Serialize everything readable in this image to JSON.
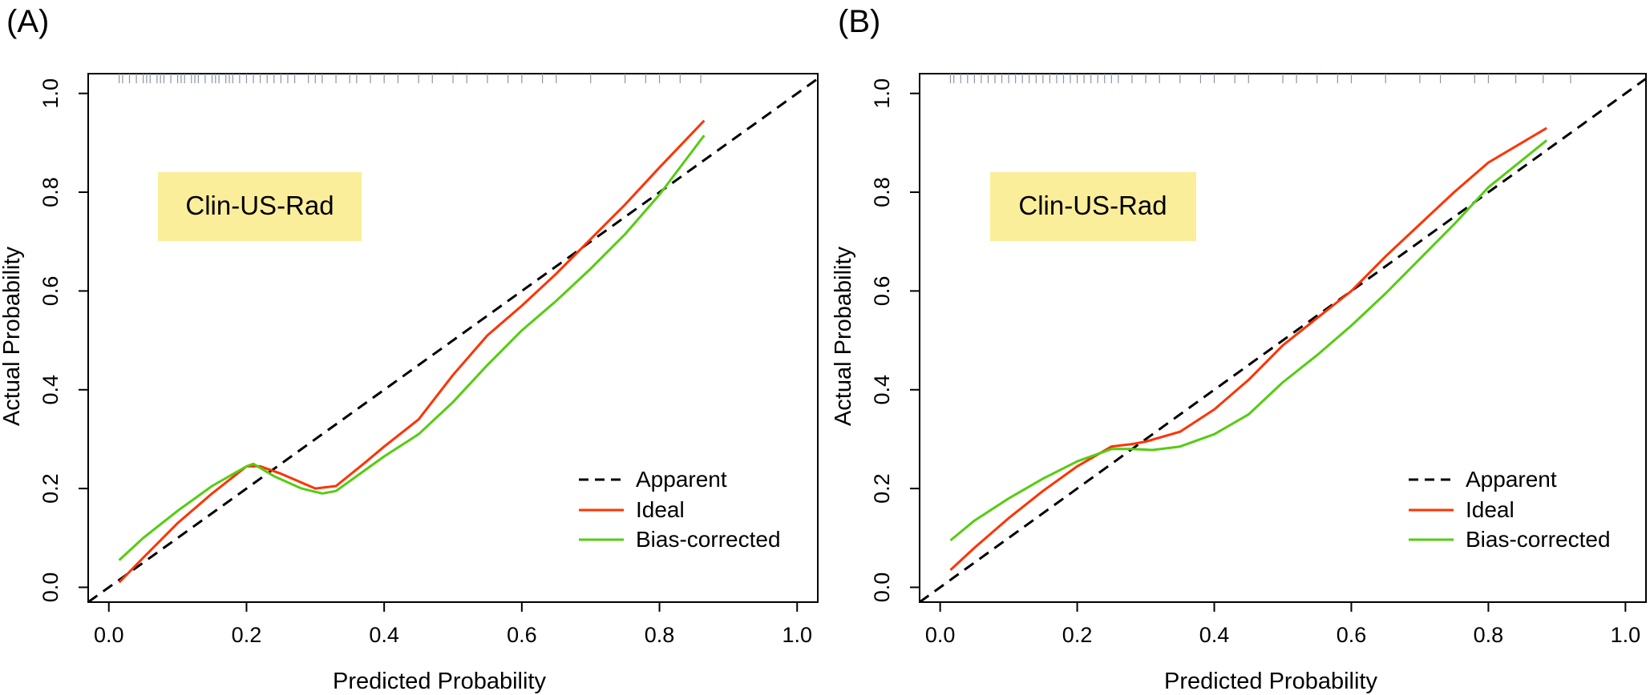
{
  "chart_data": [
    {
      "type": "line",
      "panel_label": "(A)",
      "model_label": "Clin-US-Rad",
      "model_label_bg": "#fbee9b",
      "xlabel": "Predicted Probability",
      "ylabel": "Actual Probability",
      "xlim": [
        -0.03,
        1.03
      ],
      "ylim": [
        -0.03,
        1.04
      ],
      "xticks": [
        "0.0",
        "0.2",
        "0.4",
        "0.6",
        "0.8",
        "1.0"
      ],
      "yticks": [
        "0.0",
        "0.2",
        "0.4",
        "0.6",
        "0.8",
        "1.0"
      ],
      "legend_position": "bottom-right",
      "series": [
        {
          "name": "Apparent",
          "color": "#000000",
          "dash": true,
          "x": [
            -0.03,
            1.03
          ],
          "y": [
            -0.03,
            1.03
          ]
        },
        {
          "name": "Ideal",
          "color": "#ff3300",
          "x": [
            0.015,
            0.05,
            0.1,
            0.15,
            0.2,
            0.22,
            0.25,
            0.3,
            0.33,
            0.37,
            0.4,
            0.45,
            0.5,
            0.55,
            0.6,
            0.65,
            0.7,
            0.75,
            0.8,
            0.865
          ],
          "y": [
            0.01,
            0.06,
            0.13,
            0.19,
            0.245,
            0.245,
            0.23,
            0.2,
            0.205,
            0.25,
            0.285,
            0.34,
            0.43,
            0.51,
            0.57,
            0.635,
            0.705,
            0.775,
            0.85,
            0.945
          ]
        },
        {
          "name": "Bias-corrected",
          "color": "#55cc11",
          "x": [
            0.015,
            0.05,
            0.1,
            0.15,
            0.2,
            0.21,
            0.24,
            0.28,
            0.31,
            0.33,
            0.37,
            0.4,
            0.45,
            0.5,
            0.55,
            0.6,
            0.65,
            0.7,
            0.75,
            0.8,
            0.865
          ],
          "y": [
            0.055,
            0.1,
            0.155,
            0.205,
            0.245,
            0.25,
            0.225,
            0.2,
            0.19,
            0.195,
            0.235,
            0.265,
            0.31,
            0.375,
            0.45,
            0.52,
            0.58,
            0.645,
            0.715,
            0.795,
            0.915
          ]
        }
      ],
      "rug_ticks": [
        0.015,
        0.02,
        0.03,
        0.04,
        0.05,
        0.055,
        0.06,
        0.07,
        0.075,
        0.08,
        0.09,
        0.1,
        0.105,
        0.11,
        0.12,
        0.125,
        0.13,
        0.14,
        0.15,
        0.155,
        0.16,
        0.17,
        0.175,
        0.18,
        0.19,
        0.2,
        0.21,
        0.22,
        0.23,
        0.24,
        0.25,
        0.26,
        0.27,
        0.29,
        0.3,
        0.31,
        0.33,
        0.35,
        0.36,
        0.38,
        0.4,
        0.42,
        0.45,
        0.47,
        0.5,
        0.52,
        0.55,
        0.58,
        0.6,
        0.63,
        0.65,
        0.7,
        0.75,
        0.78,
        0.8,
        0.83,
        0.86
      ]
    },
    {
      "type": "line",
      "panel_label": "(B)",
      "model_label": "Clin-US-Rad",
      "model_label_bg": "#fbee9b",
      "xlabel": "Predicted Probability",
      "ylabel": "Actual Probability",
      "xlim": [
        -0.03,
        1.03
      ],
      "ylim": [
        -0.03,
        1.04
      ],
      "xticks": [
        "0.0",
        "0.2",
        "0.4",
        "0.6",
        "0.8",
        "1.0"
      ],
      "yticks": [
        "0.0",
        "0.2",
        "0.4",
        "0.6",
        "0.8",
        "1.0"
      ],
      "legend_position": "bottom-right",
      "series": [
        {
          "name": "Apparent",
          "color": "#000000",
          "dash": true,
          "x": [
            -0.03,
            1.03
          ],
          "y": [
            -0.03,
            1.03
          ]
        },
        {
          "name": "Ideal",
          "color": "#ff3300",
          "x": [
            0.015,
            0.05,
            0.1,
            0.15,
            0.2,
            0.25,
            0.28,
            0.3,
            0.35,
            0.4,
            0.45,
            0.5,
            0.55,
            0.6,
            0.65,
            0.7,
            0.75,
            0.8,
            0.885
          ],
          "y": [
            0.035,
            0.08,
            0.14,
            0.195,
            0.245,
            0.285,
            0.29,
            0.295,
            0.315,
            0.36,
            0.42,
            0.49,
            0.545,
            0.6,
            0.67,
            0.735,
            0.8,
            0.86,
            0.93
          ]
        },
        {
          "name": "Bias-corrected",
          "color": "#55cc11",
          "x": [
            0.015,
            0.05,
            0.1,
            0.15,
            0.2,
            0.25,
            0.28,
            0.31,
            0.35,
            0.4,
            0.45,
            0.5,
            0.55,
            0.6,
            0.65,
            0.7,
            0.75,
            0.8,
            0.885
          ],
          "y": [
            0.095,
            0.135,
            0.18,
            0.22,
            0.255,
            0.28,
            0.28,
            0.278,
            0.285,
            0.31,
            0.35,
            0.415,
            0.47,
            0.53,
            0.595,
            0.665,
            0.735,
            0.81,
            0.905
          ]
        }
      ],
      "rug_ticks": [
        0.015,
        0.02,
        0.03,
        0.04,
        0.05,
        0.06,
        0.07,
        0.08,
        0.09,
        0.1,
        0.11,
        0.12,
        0.13,
        0.14,
        0.15,
        0.16,
        0.17,
        0.18,
        0.19,
        0.2,
        0.21,
        0.22,
        0.23,
        0.24,
        0.25,
        0.26,
        0.28,
        0.3,
        0.32,
        0.35,
        0.38,
        0.4,
        0.43,
        0.45,
        0.5,
        0.52,
        0.55,
        0.58,
        0.6,
        0.65,
        0.7,
        0.73,
        0.78,
        0.8,
        0.84,
        0.88,
        0.92
      ]
    }
  ]
}
